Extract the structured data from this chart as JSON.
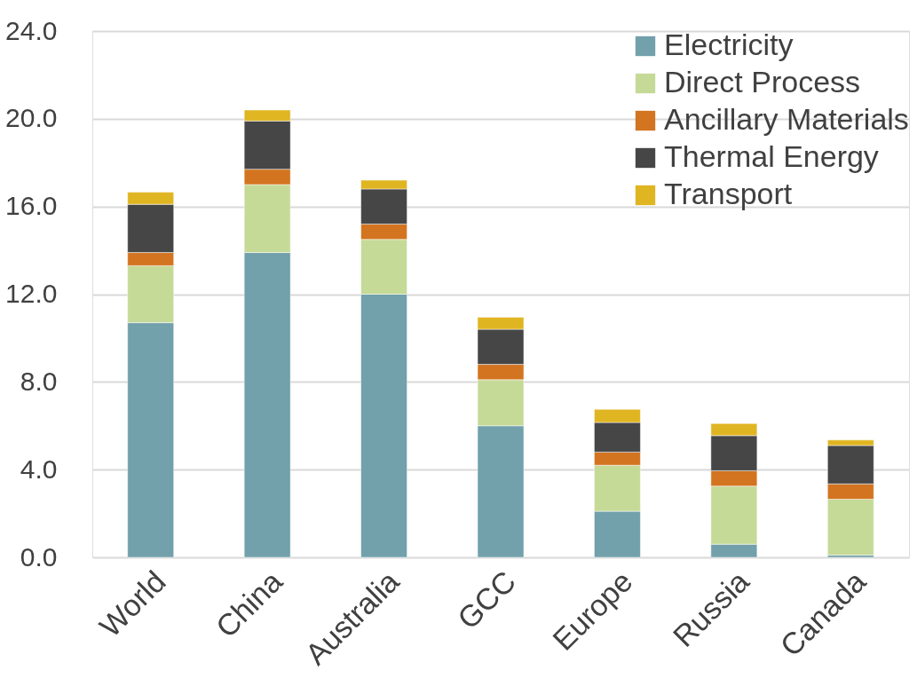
{
  "chart_data": {
    "type": "bar",
    "stacked": true,
    "categories": [
      "World",
      "China",
      "Australia",
      "GCC",
      "Europe",
      "Russia",
      "Canada"
    ],
    "series": [
      {
        "name": "Electricity",
        "color": "#72a0ab",
        "values": [
          10.7,
          13.9,
          12.0,
          6.0,
          2.1,
          0.6,
          0.1
        ]
      },
      {
        "name": "Direct Process",
        "color": "#c6da98",
        "values": [
          2.6,
          3.1,
          2.5,
          2.1,
          2.1,
          2.65,
          2.55
        ]
      },
      {
        "name": "Ancillary Materials",
        "color": "#d37420",
        "values": [
          0.6,
          0.7,
          0.7,
          0.7,
          0.6,
          0.7,
          0.7
        ]
      },
      {
        "name": "Thermal Energy",
        "color": "#464646",
        "values": [
          2.2,
          2.2,
          1.6,
          1.6,
          1.35,
          1.6,
          1.75
        ]
      },
      {
        "name": "Transport",
        "color": "#e0b522",
        "values": [
          0.55,
          0.5,
          0.4,
          0.55,
          0.6,
          0.55,
          0.25
        ]
      }
    ],
    "ylim": [
      0,
      24
    ],
    "yticks": [
      {
        "value": 0,
        "label": "0.0"
      },
      {
        "value": 4,
        "label": "4.0"
      },
      {
        "value": 8,
        "label": "8.0"
      },
      {
        "value": 12,
        "label": "12.0"
      },
      {
        "value": 16,
        "label": "16.0"
      },
      {
        "value": 20,
        "label": "20.0"
      },
      {
        "value": 24,
        "label": "24.0"
      }
    ],
    "grid": "y",
    "legend": "top right"
  }
}
